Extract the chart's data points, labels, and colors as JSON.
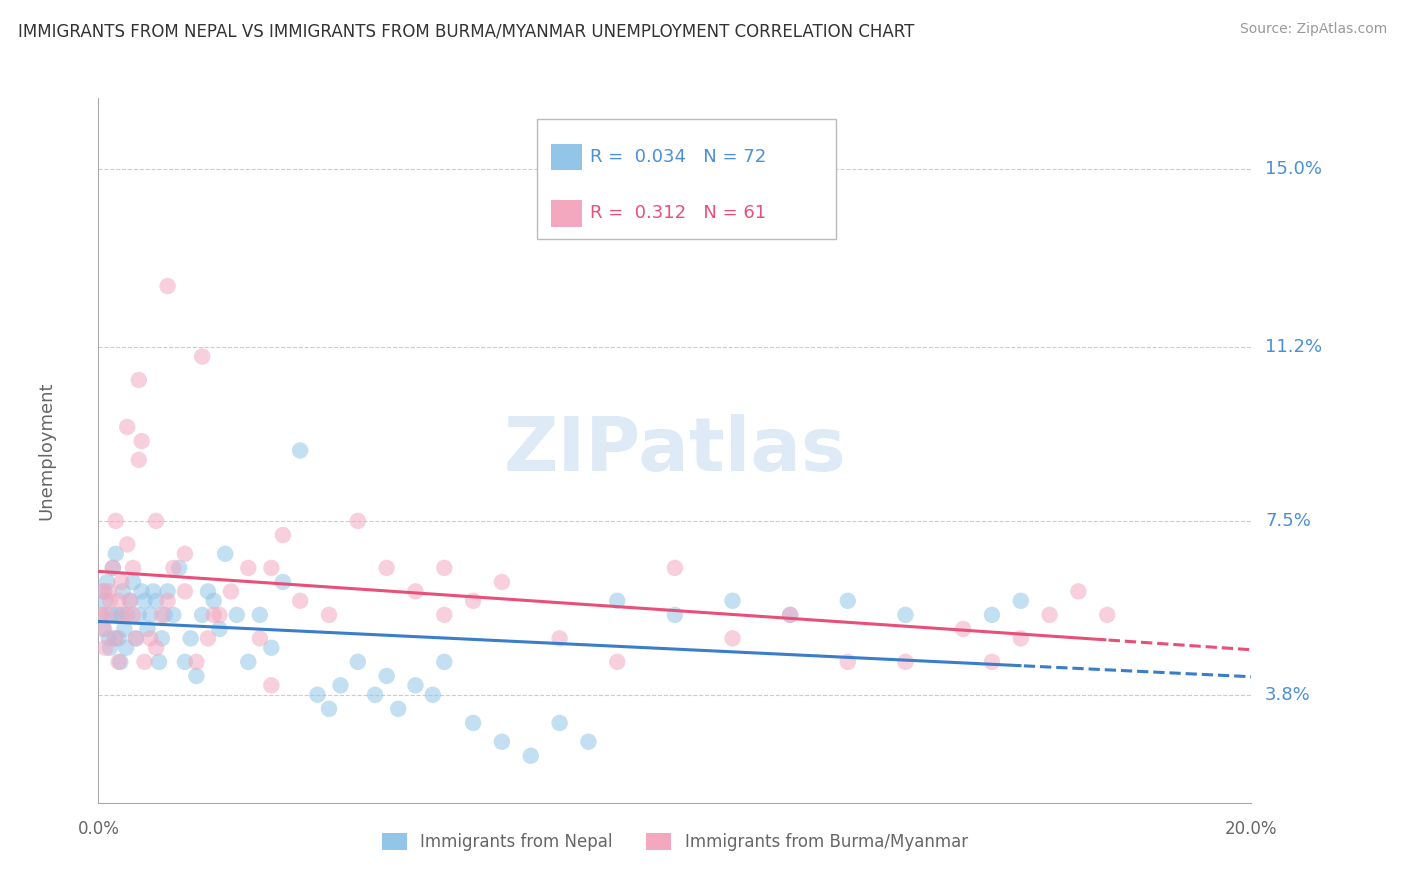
{
  "title": "IMMIGRANTS FROM NEPAL VS IMMIGRANTS FROM BURMA/MYANMAR UNEMPLOYMENT CORRELATION CHART",
  "source": "Source: ZipAtlas.com",
  "ylabel": "Unemployment",
  "y_ticks": [
    3.8,
    7.5,
    11.2,
    15.0
  ],
  "x_min": 0.0,
  "x_max": 20.0,
  "y_min": 1.5,
  "y_max": 16.5,
  "nepal_R": 0.034,
  "nepal_N": 72,
  "burma_R": 0.312,
  "burma_N": 61,
  "nepal_color": "#92C5E8",
  "burma_color": "#F4A8C0",
  "nepal_line_color": "#3A7EC9",
  "burma_line_color": "#E8507A",
  "nepal_scatter_x": [
    0.05,
    0.08,
    0.1,
    0.12,
    0.15,
    0.18,
    0.2,
    0.22,
    0.25,
    0.28,
    0.3,
    0.32,
    0.35,
    0.38,
    0.4,
    0.42,
    0.45,
    0.48,
    0.5,
    0.55,
    0.6,
    0.65,
    0.7,
    0.75,
    0.8,
    0.85,
    0.9,
    0.95,
    1.0,
    1.05,
    1.1,
    1.15,
    1.2,
    1.3,
    1.4,
    1.5,
    1.6,
    1.7,
    1.8,
    1.9,
    2.0,
    2.1,
    2.2,
    2.4,
    2.6,
    2.8,
    3.0,
    3.2,
    3.5,
    3.8,
    4.0,
    4.2,
    4.5,
    4.8,
    5.0,
    5.2,
    5.5,
    5.8,
    6.0,
    6.5,
    7.0,
    7.5,
    8.0,
    8.5,
    9.0,
    10.0,
    11.0,
    12.0,
    13.0,
    14.0,
    15.5,
    16.0
  ],
  "nepal_scatter_y": [
    5.5,
    5.2,
    6.0,
    5.8,
    6.2,
    5.0,
    4.8,
    5.5,
    6.5,
    5.0,
    6.8,
    5.5,
    5.0,
    4.5,
    5.5,
    6.0,
    5.2,
    4.8,
    5.5,
    5.8,
    6.2,
    5.0,
    5.5,
    6.0,
    5.8,
    5.2,
    5.5,
    6.0,
    5.8,
    4.5,
    5.0,
    5.5,
    6.0,
    5.5,
    6.5,
    4.5,
    5.0,
    4.2,
    5.5,
    6.0,
    5.8,
    5.2,
    6.8,
    5.5,
    4.5,
    5.5,
    4.8,
    6.2,
    9.0,
    3.8,
    3.5,
    4.0,
    4.5,
    3.8,
    4.2,
    3.5,
    4.0,
    3.8,
    4.5,
    3.2,
    2.8,
    2.5,
    3.2,
    2.8,
    5.8,
    5.5,
    5.8,
    5.5,
    5.8,
    5.5,
    5.5,
    5.8
  ],
  "burma_scatter_x": [
    0.05,
    0.08,
    0.1,
    0.12,
    0.15,
    0.18,
    0.2,
    0.25,
    0.3,
    0.35,
    0.4,
    0.45,
    0.5,
    0.55,
    0.6,
    0.65,
    0.7,
    0.75,
    0.8,
    0.9,
    1.0,
    1.1,
    1.2,
    1.3,
    1.5,
    1.7,
    1.9,
    2.1,
    2.3,
    2.6,
    2.8,
    3.0,
    3.2,
    3.5,
    4.0,
    4.5,
    5.0,
    5.5,
    6.0,
    6.5,
    7.0,
    8.0,
    9.0,
    10.0,
    11.0,
    12.0,
    13.0,
    14.0,
    15.0,
    15.5,
    16.0,
    16.5,
    17.0,
    17.5,
    0.35,
    0.6,
    1.0,
    1.5,
    2.0,
    3.0,
    6.0
  ],
  "burma_scatter_y": [
    5.5,
    6.0,
    5.2,
    4.8,
    5.5,
    6.0,
    5.8,
    6.5,
    5.0,
    4.5,
    6.2,
    5.5,
    7.0,
    5.8,
    6.5,
    5.0,
    8.8,
    9.2,
    4.5,
    5.0,
    7.5,
    5.5,
    5.8,
    6.5,
    6.8,
    4.5,
    5.0,
    5.5,
    6.0,
    6.5,
    5.0,
    4.0,
    7.2,
    5.8,
    5.5,
    7.5,
    6.5,
    6.0,
    5.5,
    5.8,
    6.2,
    5.0,
    4.5,
    6.5,
    5.0,
    5.5,
    4.5,
    4.5,
    5.2,
    4.5,
    5.0,
    5.5,
    6.0,
    5.5,
    5.8,
    5.5,
    4.8,
    6.0,
    5.5,
    6.5,
    6.5
  ],
  "burma_extra_x": [
    0.5,
    0.7,
    1.2,
    0.3,
    1.8
  ],
  "burma_extra_y": [
    9.5,
    10.5,
    12.5,
    7.5,
    11.0
  ]
}
